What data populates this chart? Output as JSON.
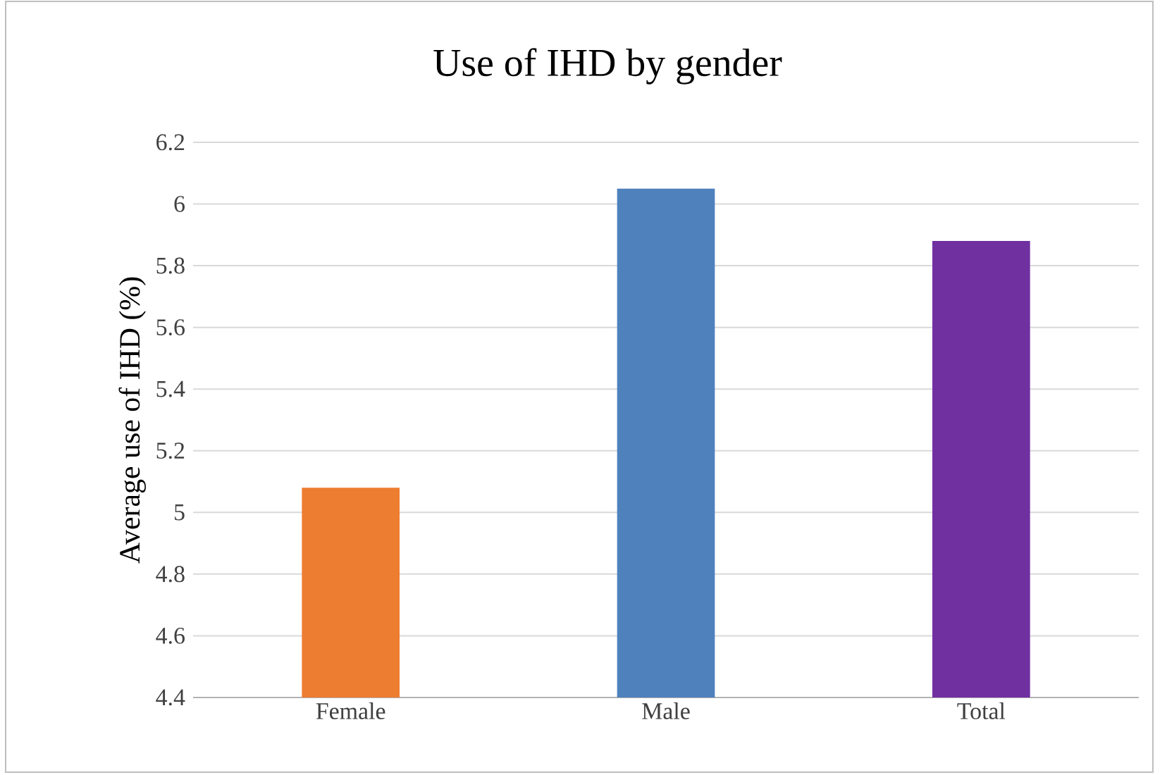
{
  "chart_data": {
    "type": "bar",
    "title": "Use of IHD by gender",
    "ylabel": "Average use of  IHD (%)",
    "categories": [
      "Female",
      "Male",
      "Total"
    ],
    "values": [
      5.08,
      6.05,
      5.88
    ],
    "colors": [
      "#ed7d31",
      "#4f81bd",
      "#7030a0"
    ],
    "ylim": [
      4.4,
      6.2
    ],
    "yticks": [
      4.4,
      4.6,
      4.8,
      5,
      5.2,
      5.4,
      5.6,
      5.8,
      6,
      6.2
    ],
    "grid": "y"
  }
}
